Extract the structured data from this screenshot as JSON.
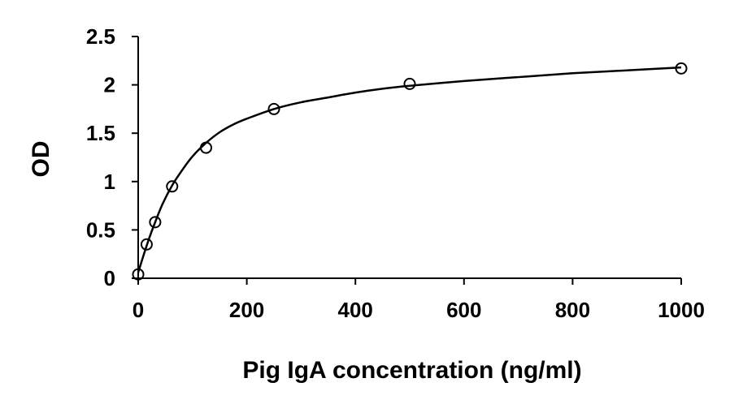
{
  "chart_data": {
    "type": "scatter",
    "title": "",
    "xlabel": "Pig IgA concentration (ng/ml)",
    "ylabel": "OD",
    "xlim": [
      0,
      1000
    ],
    "ylim": [
      0,
      2.5
    ],
    "x_ticks": [
      "0",
      "200",
      "400",
      "600",
      "800",
      "1000"
    ],
    "y_ticks": [
      "0",
      "0.5",
      "1",
      "1.5",
      "2",
      "2.5"
    ],
    "grid": false,
    "legend": "none",
    "series": [
      {
        "marker": "open-circle",
        "x": [
          0,
          15.6,
          31.25,
          62.5,
          125,
          250,
          500,
          1000
        ],
        "y": [
          0.04,
          0.35,
          0.58,
          0.95,
          1.35,
          1.75,
          2.01,
          2.17
        ]
      }
    ],
    "fit_curve": {
      "style": "solid-black",
      "points": [
        [
          0,
          0.06
        ],
        [
          10,
          0.24
        ],
        [
          20,
          0.41
        ],
        [
          31.25,
          0.58
        ],
        [
          45,
          0.77
        ],
        [
          62.5,
          0.96
        ],
        [
          80,
          1.11
        ],
        [
          100,
          1.26
        ],
        [
          125,
          1.4
        ],
        [
          150,
          1.51
        ],
        [
          175,
          1.59
        ],
        [
          200,
          1.65
        ],
        [
          250,
          1.75
        ],
        [
          300,
          1.82
        ],
        [
          350,
          1.87
        ],
        [
          400,
          1.92
        ],
        [
          450,
          1.96
        ],
        [
          500,
          1.99
        ],
        [
          600,
          2.04
        ],
        [
          700,
          2.08
        ],
        [
          800,
          2.12
        ],
        [
          900,
          2.15
        ],
        [
          1000,
          2.18
        ]
      ]
    }
  }
}
